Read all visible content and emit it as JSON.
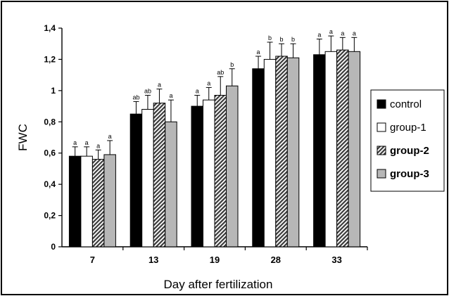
{
  "chart_data": {
    "type": "bar",
    "title": "",
    "xlabel": "Day after fertilization",
    "ylabel": "FWC",
    "ylim": [
      0,
      1.4
    ],
    "yticks": [
      "0",
      "0,2",
      "0,4",
      "0,6",
      "0,8",
      "1",
      "1,2",
      "1,4"
    ],
    "grid": false,
    "legend_position": "right",
    "categories": [
      "7",
      "13",
      "19",
      "28",
      "33"
    ],
    "series": [
      {
        "name": "control",
        "pattern": "solid-black",
        "values": [
          0.58,
          0.85,
          0.9,
          1.14,
          1.23
        ],
        "errors": [
          0.06,
          0.08,
          0.07,
          0.08,
          0.1
        ],
        "letters": [
          "a",
          "ab",
          "a",
          "a",
          "a"
        ]
      },
      {
        "name": "group-1",
        "pattern": "white",
        "values": [
          0.58,
          0.88,
          0.94,
          1.2,
          1.25
        ],
        "errors": [
          0.06,
          0.09,
          0.08,
          0.11,
          0.1
        ],
        "letters": [
          "a",
          "ab",
          "a",
          "b",
          "a"
        ]
      },
      {
        "name": "group-2",
        "pattern": "hatched",
        "values": [
          0.56,
          0.92,
          0.97,
          1.22,
          1.26
        ],
        "errors": [
          0.06,
          0.09,
          0.12,
          0.08,
          0.08
        ],
        "letters": [
          "a",
          "a",
          "ab",
          "b",
          "a"
        ]
      },
      {
        "name": "group-3",
        "pattern": "solid-gray",
        "values": [
          0.59,
          0.8,
          1.03,
          1.21,
          1.25
        ],
        "errors": [
          0.09,
          0.14,
          0.11,
          0.09,
          0.09
        ],
        "letters": [
          "a",
          "a",
          "b",
          "b",
          "a"
        ]
      }
    ]
  },
  "colors": {
    "control": "#000000",
    "group-1": "#ffffff",
    "group-2": "#6a6a6a",
    "group-3": "#b7b7b7",
    "axis": "#000000"
  }
}
